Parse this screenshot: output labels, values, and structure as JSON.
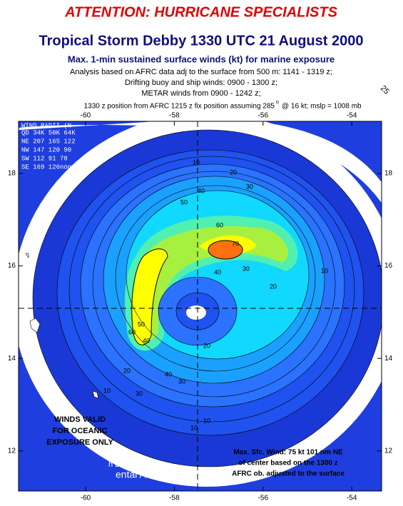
{
  "header": {
    "alert": "ATTENTION: HURRICANE SPECIALISTS",
    "title": "Tropical Storm Debby 1330 UTC 21 August 2000",
    "subtitle": "Max. 1-min sustained surface winds (kt) for marine exposure",
    "lines": [
      "Analysis based on AFRC data adj to the surface from 500 m: 1141 - 1319 z;",
      "Drifting buoy and ship winds: 0900 - 1300 z;",
      "METAR winds from 0900 - 1242 z;"
    ],
    "position": [
      "1330 z position from AFRC 1215 z  fix position assuming 285",
      "o",
      "@ 16 kt; mslp = 1008 mb"
    ],
    "corner": "25"
  },
  "axes": {
    "lon_ticks": [
      -60,
      -58,
      -56,
      -54
    ],
    "lat_ticks": [
      18,
      16,
      14,
      12
    ]
  },
  "wind_radii": {
    "title": "WIND RADII (N",
    "rows": [
      "QD 34K 50K 64K",
      "NE 207 165 122",
      "NW 147 120  90",
      "SW 112  91  78",
      "SE 169 126none"
    ]
  },
  "notes": {
    "valid": [
      "WINDS VALID",
      "FOR OCEANIC",
      "EXPOSURE ONLY"
    ],
    "max_wind": [
      "Max. Sfc. Wind: 75 kt 101 nm NE",
      "of center based on the 1300 z",
      "AFRC ob. adjusted to the surface"
    ],
    "credit": [
      "h Division:",
      "ental Analysis"
    ]
  },
  "contour_labels": [
    "10",
    "20",
    "30",
    "40",
    "50",
    "60",
    "70",
    "10",
    "20",
    "30",
    "40",
    "30",
    "20",
    "10",
    "10",
    "40",
    "50",
    "60",
    "40",
    "30",
    "20",
    "10"
  ]
}
